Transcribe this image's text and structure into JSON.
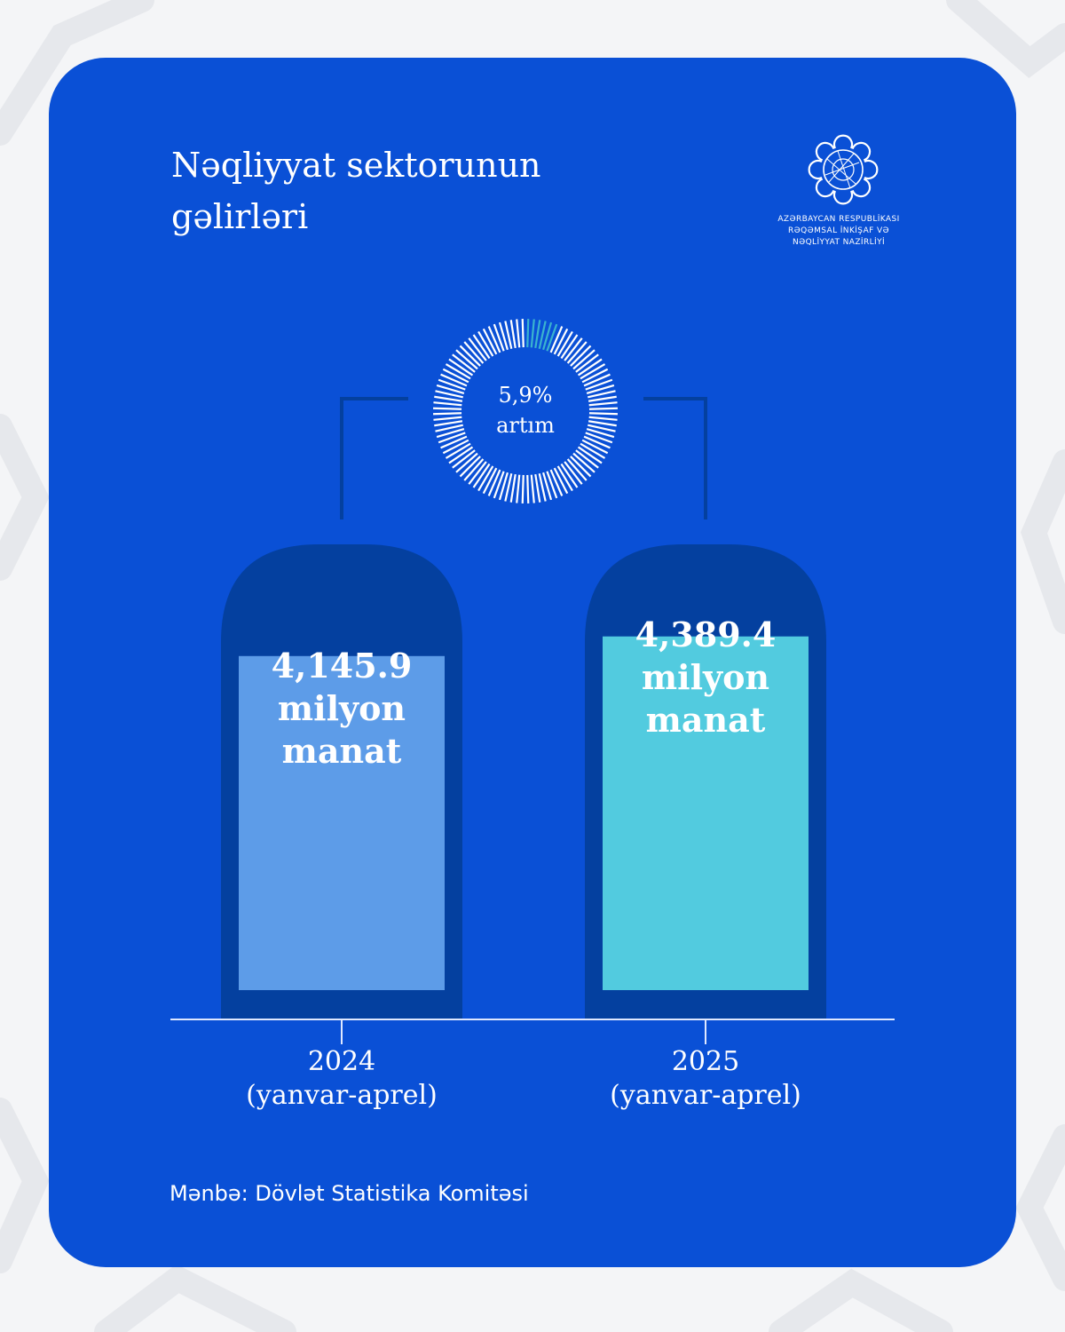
{
  "header": {
    "title_lines": [
      "Nəqliyyat sektorunun",
      "gəlirləri"
    ]
  },
  "logo": {
    "icon": "ornamental-rosette-icon",
    "text_lines": [
      "AZƏRBAYCAN RESPUBLİKASI",
      "RƏQƏMSAL İNKİŞAF VƏ",
      "NƏQLİYYAT NAZİRLİYİ"
    ]
  },
  "colors": {
    "card": "#0a50d6",
    "column": "#04409f",
    "bar_2024": "#5d9ce8",
    "bar_2025": "#52cbdf",
    "ring_highlight": "#3ab3cf",
    "text": "#ffffff"
  },
  "chart_data": {
    "type": "bar",
    "categories": [
      "2024",
      "2025"
    ],
    "category_sublabels": [
      "(yanvar-aprel)",
      "(yanvar-aprel)"
    ],
    "values": [
      4145.9,
      4389.4
    ],
    "value_labels": [
      [
        "4,145.9",
        "milyon",
        "manat"
      ],
      [
        "4,389.4",
        "milyon",
        "manat"
      ]
    ],
    "growth": {
      "percent": 5.9,
      "label_lines": [
        "5,9%",
        "artım"
      ]
    }
  },
  "footer": {
    "source": "Mənbə: Dövlət Statistika Komitəsi"
  }
}
